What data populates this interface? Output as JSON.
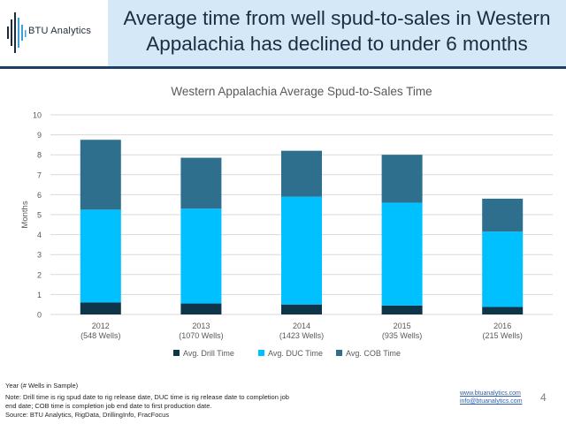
{
  "header": {
    "logo_text": "BTU Analytics",
    "headline_line1": "Average time from well spud-to-sales in Western",
    "headline_line2": "Appalachia has declined to under 6 months"
  },
  "chart_data": {
    "type": "bar",
    "stacked": true,
    "title": "Western Appalachia Average Spud-to-Sales Time",
    "xlabel": "",
    "ylabel": "Months",
    "ylim": [
      0,
      10
    ],
    "yticks": [
      0,
      1,
      2,
      3,
      4,
      5,
      6,
      7,
      8,
      9,
      10
    ],
    "grid": true,
    "legend_position": "bottom",
    "categories": [
      "2012",
      "2013",
      "2014",
      "2015",
      "2016"
    ],
    "category_sublabels": [
      "(548 Wells)",
      "(1070 Wells)",
      "(1423 Wells)",
      "(935 Wells)",
      "(215 Wells)"
    ],
    "series": [
      {
        "name": "Avg. Drill Time",
        "color": "#0f3548",
        "values": [
          0.6,
          0.55,
          0.5,
          0.45,
          0.38
        ]
      },
      {
        "name": "Avg. DUC Time",
        "color": "#00c0ff",
        "values": [
          4.65,
          4.75,
          5.4,
          5.15,
          3.77
        ]
      },
      {
        "name": "Avg. COB Time",
        "color": "#2e6f8e",
        "values": [
          3.5,
          2.55,
          2.3,
          2.4,
          1.65
        ]
      }
    ]
  },
  "footer": {
    "year_label": "Year (# Wells in Sample)",
    "note": "Note: Drill time is rig spud date to rig release date, DUC time is rig release date to completion job end date; COB time is completion job end date to first production date.",
    "source": "Source: BTU Analytics, RigData, DrillingInfo, FracFocus",
    "website": "www.btuanalytics.com",
    "email": "info@btuanalytics.com",
    "page_number": "4"
  },
  "colors": {
    "header_bg": "#d5e8f7",
    "header_rule": "#1f3f63"
  }
}
